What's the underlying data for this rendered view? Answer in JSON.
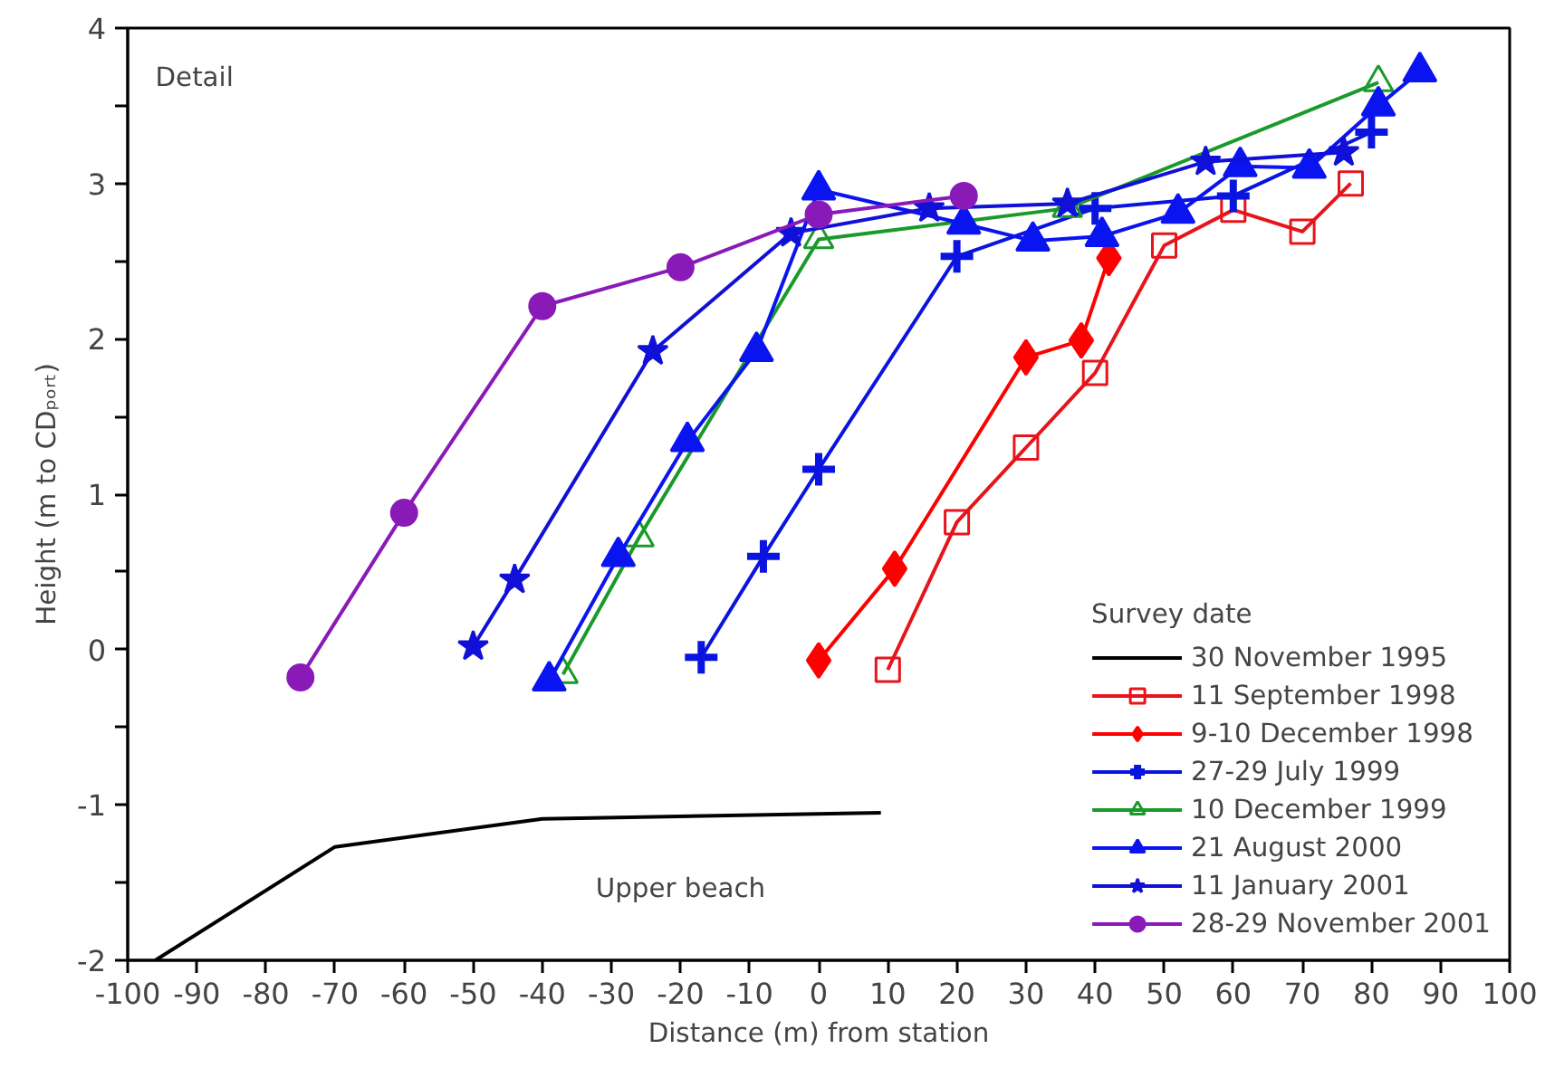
{
  "chart_data": {
    "type": "line",
    "xlabel": "Distance (m) from station",
    "ylabel": "Height (m to CDₚₒᵣₜ)",
    "legend_title": "Survey date",
    "annotations": [
      "Detail",
      "Upper beach"
    ],
    "xlim": [
      -100,
      100
    ],
    "xticks": [
      -100,
      -90,
      -80,
      -70,
      -60,
      -50,
      -40,
      -30,
      -20,
      -10,
      0,
      10,
      20,
      30,
      40,
      50,
      60,
      70,
      80,
      90,
      100
    ],
    "ylim": [
      -2,
      4
    ],
    "yticks": [
      -2,
      {
        "value": -1.5,
        "label": null
      },
      -1,
      {
        "value": -0.5,
        "label": null
      },
      0,
      {
        "value": 0.5,
        "label": null
      },
      1,
      {
        "value": 1.5,
        "label": null
      },
      2,
      {
        "value": 2.5,
        "label": null
      },
      3,
      {
        "value": 3.5,
        "label": null
      },
      4
    ],
    "grid": false,
    "legend": "bottom right",
    "line_style": "solid",
    "series": [
      {
        "name": "30 November 1995",
        "color": "#000000",
        "marker": "none",
        "x": [
          -96,
          -70,
          -40,
          9
        ],
        "values": [
          -2.0,
          -1.27,
          -1.09,
          -1.05
        ]
      },
      {
        "name": "11 September 1998",
        "color": "#e8141b",
        "marker": "square_open",
        "x": [
          10,
          20,
          30,
          40,
          50,
          60,
          70,
          77
        ],
        "values": [
          -0.13,
          0.82,
          1.3,
          1.78,
          2.6,
          2.83,
          2.69,
          3.0
        ]
      },
      {
        "name": "9-10 December 1998",
        "color": "#ff0000",
        "marker": "diamond",
        "x": [
          0,
          11,
          30,
          38,
          42
        ],
        "values": [
          -0.07,
          0.52,
          1.88,
          1.99,
          2.52
        ]
      },
      {
        "name": "27-29 July 1999",
        "color": "#0a14e0",
        "marker": "cross",
        "x": [
          -17,
          -8,
          0,
          20,
          40,
          60,
          80
        ],
        "values": [
          -0.05,
          0.6,
          1.16,
          2.53,
          2.84,
          2.92,
          3.33
        ]
      },
      {
        "name": "10 December 1999",
        "color": "#1a9a2a",
        "marker": "triangle_open",
        "x": [
          -37,
          -26,
          0,
          36,
          81
        ],
        "values": [
          -0.16,
          0.72,
          2.64,
          2.84,
          3.65
        ]
      },
      {
        "name": "21 August 2000",
        "color": "#0a14f0",
        "marker": "triangle",
        "x": [
          -39,
          -29,
          -19,
          -9,
          0,
          21,
          31,
          41,
          52,
          61,
          71,
          81,
          87
        ],
        "values": [
          -0.2,
          0.6,
          1.34,
          1.92,
          2.96,
          2.74,
          2.63,
          2.66,
          2.81,
          3.11,
          3.1,
          3.5,
          3.72
        ]
      },
      {
        "name": "11 January 2001",
        "color": "#1010d8",
        "marker": "star",
        "x": [
          -50,
          -44,
          -24,
          -4,
          16,
          36,
          56,
          76
        ],
        "values": [
          0.02,
          0.45,
          1.92,
          2.68,
          2.84,
          2.87,
          3.14,
          3.2
        ]
      },
      {
        "name": "28-29 November 2001",
        "color": "#8a1ab8",
        "marker": "circle",
        "x": [
          -75,
          -60,
          -40,
          -20,
          0,
          21
        ],
        "values": [
          -0.18,
          0.88,
          2.21,
          2.46,
          2.8,
          2.92
        ]
      }
    ]
  }
}
